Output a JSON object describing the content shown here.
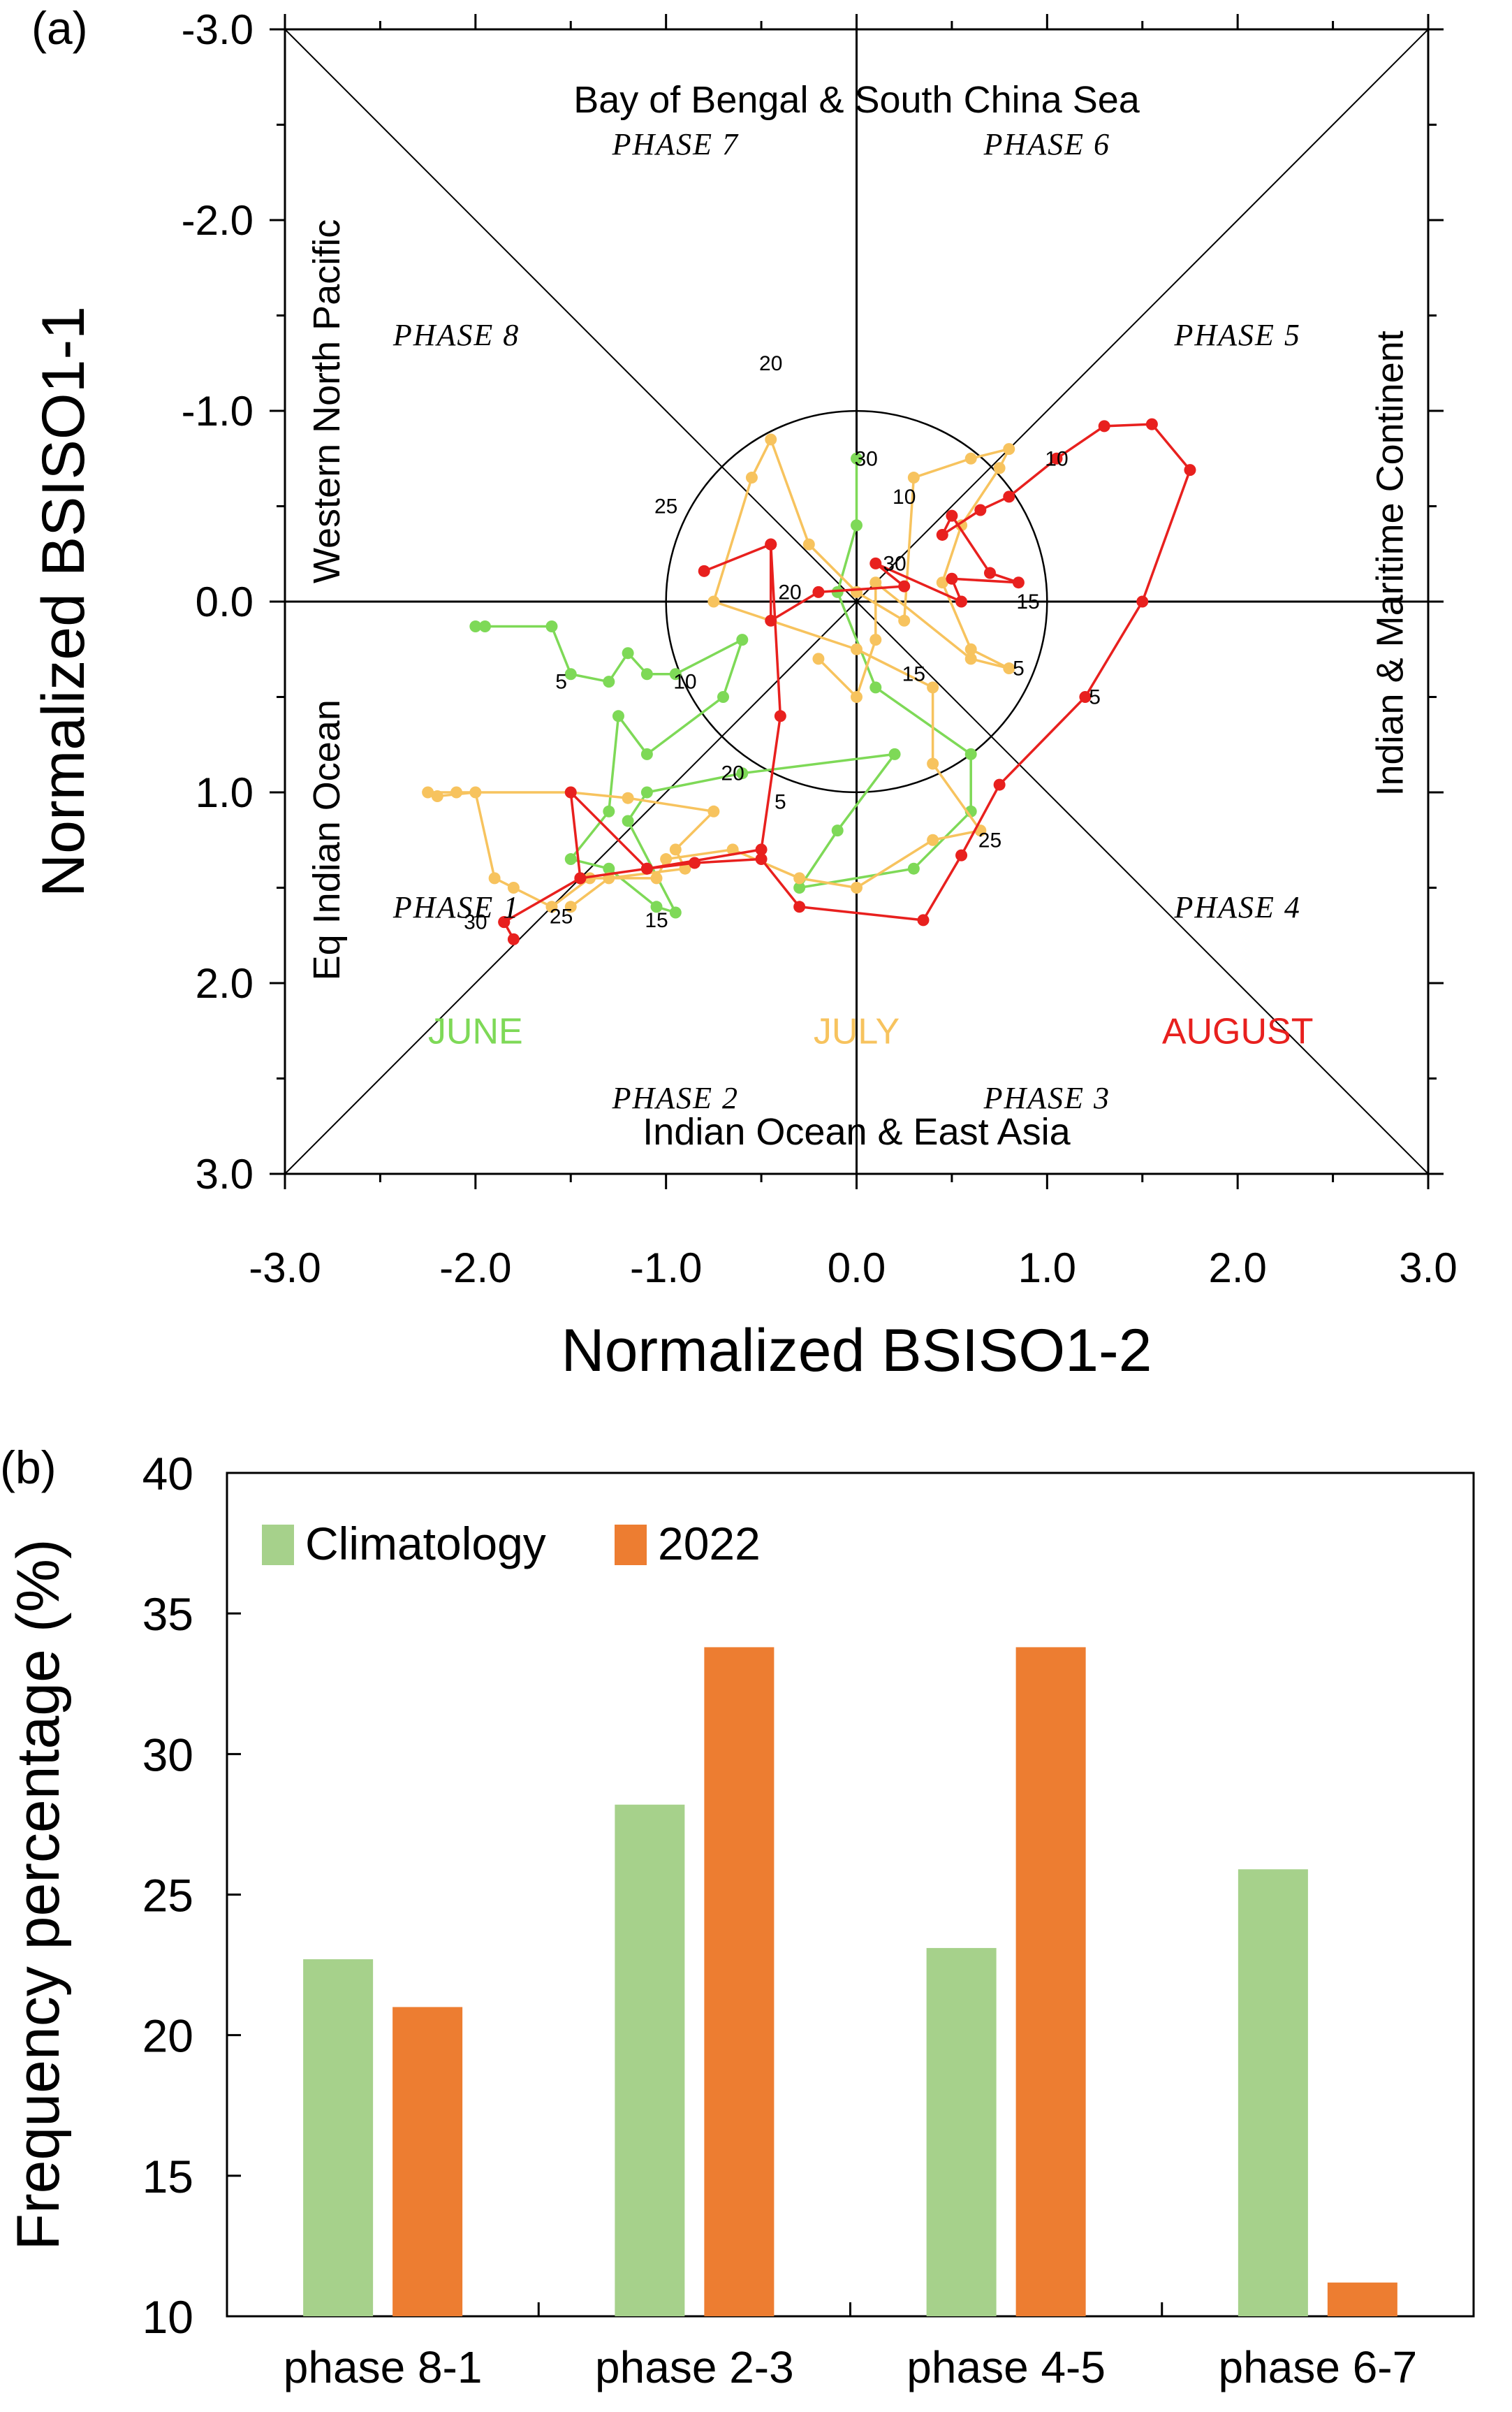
{
  "panels": {
    "a": "(a)",
    "b": "(b)"
  },
  "chart_data": [
    {
      "type": "scatter",
      "title": "",
      "xlabel": "Normalized BSISO1-2",
      "ylabel": "Normalized BSISO1-1",
      "xlim": [
        -3,
        3
      ],
      "ylim": [
        3,
        -3
      ],
      "xticks": [
        "-3.0",
        "-2.0",
        "-1.0",
        "0.0",
        "1.0",
        "2.0",
        "3.0"
      ],
      "yticks": [
        "-3.0",
        "-2.0",
        "-1.0",
        "0.0",
        "1.0",
        "2.0",
        "3.0"
      ],
      "y_axis_inverted": true,
      "phase_labels": [
        {
          "text": "PHASE 1",
          "x": -2.1,
          "y": 1.6
        },
        {
          "text": "PHASE 2",
          "x": -0.95,
          "y": 2.6
        },
        {
          "text": "PHASE 3",
          "x": 1.0,
          "y": 2.6
        },
        {
          "text": "PHASE 4",
          "x": 2.0,
          "y": 1.6
        },
        {
          "text": "PHASE 5",
          "x": 2.0,
          "y": -1.4
        },
        {
          "text": "PHASE 6",
          "x": 1.0,
          "y": -2.4
        },
        {
          "text": "PHASE 7",
          "x": -0.95,
          "y": -2.4
        },
        {
          "text": "PHASE 8",
          "x": -2.1,
          "y": -1.4
        }
      ],
      "regions": {
        "top": "Bay of Bengal & South China Sea",
        "bottom": "Indian Ocean & East Asia",
        "left_outer": "Eq Indian Ocean",
        "left_inner": "Western North Pacific",
        "right": "Indian & Maritime Continent"
      },
      "unit_circle_radius": 1.0,
      "series": [
        {
          "name": "JUNE",
          "color": "#7ed957",
          "points": [
            [
              -2.0,
              0.13
            ],
            [
              -1.95,
              0.13
            ],
            [
              -1.6,
              0.13
            ],
            [
              -1.5,
              0.38
            ],
            [
              -1.3,
              0.42
            ],
            [
              -1.2,
              0.27
            ],
            [
              -1.1,
              0.38
            ],
            [
              -0.95,
              0.38
            ],
            [
              -0.6,
              0.2
            ],
            [
              -0.7,
              0.5
            ],
            [
              -1.1,
              0.8
            ],
            [
              -1.25,
              0.6
            ],
            [
              -1.3,
              1.1
            ],
            [
              -1.5,
              1.35
            ],
            [
              -1.3,
              1.4
            ],
            [
              -1.05,
              1.6
            ],
            [
              -0.95,
              1.63
            ],
            [
              -1.2,
              1.15
            ],
            [
              -1.1,
              1.0
            ],
            [
              -0.6,
              0.9
            ],
            [
              0.2,
              0.8
            ],
            [
              -0.1,
              1.2
            ],
            [
              -0.3,
              1.5
            ],
            [
              0.3,
              1.4
            ],
            [
              0.6,
              1.1
            ],
            [
              0.6,
              0.8
            ],
            [
              0.1,
              0.45
            ],
            [
              -0.1,
              -0.05
            ],
            [
              0.0,
              -0.4
            ],
            [
              0.0,
              -0.75
            ]
          ],
          "day_labels": [
            {
              "text": "5",
              "x": -1.55,
              "y": 0.42
            },
            {
              "text": "10",
              "x": -0.9,
              "y": 0.42
            },
            {
              "text": "15",
              "x": -1.05,
              "y": 1.67
            },
            {
              "text": "20",
              "x": -0.65,
              "y": 0.9
            },
            {
              "text": "25",
              "x": 0.7,
              "y": 1.25
            },
            {
              "text": "30",
              "x": 0.05,
              "y": -0.75
            }
          ]
        },
        {
          "name": "JULY",
          "color": "#f7c35e",
          "points": [
            [
              -0.2,
              0.3
            ],
            [
              0.0,
              0.5
            ],
            [
              0.1,
              0.2
            ],
            [
              0.1,
              -0.1
            ],
            [
              0.6,
              0.3
            ],
            [
              0.8,
              0.35
            ],
            [
              0.6,
              0.25
            ],
            [
              0.45,
              -0.1
            ],
            [
              0.55,
              -0.4
            ],
            [
              0.75,
              -0.7
            ],
            [
              0.8,
              -0.8
            ],
            [
              0.6,
              -0.75
            ],
            [
              0.3,
              -0.65
            ],
            [
              0.25,
              0.1
            ],
            [
              0.0,
              -0.05
            ],
            [
              -0.25,
              -0.3
            ],
            [
              -0.45,
              -0.85
            ],
            [
              -0.55,
              -0.65
            ],
            [
              -0.75,
              0.0
            ],
            [
              0.0,
              0.25
            ],
            [
              0.4,
              0.45
            ],
            [
              0.4,
              0.85
            ],
            [
              0.65,
              1.2
            ],
            [
              0.4,
              1.25
            ],
            [
              0.0,
              1.5
            ],
            [
              -0.3,
              1.45
            ],
            [
              -0.65,
              1.3
            ],
            [
              -1.0,
              1.35
            ],
            [
              -1.05,
              1.45
            ],
            [
              -1.4,
              1.45
            ],
            [
              -1.6,
              1.6
            ],
            [
              -1.8,
              1.5
            ],
            [
              -1.9,
              1.45
            ],
            [
              -2.0,
              1.0
            ],
            [
              -2.2,
              1.02
            ],
            [
              -2.25,
              1.0
            ],
            [
              -2.1,
              1.0
            ],
            [
              -1.5,
              1.0
            ],
            [
              -1.2,
              1.03
            ],
            [
              -0.75,
              1.1
            ],
            [
              -0.95,
              1.3
            ],
            [
              -0.9,
              1.4
            ],
            [
              -1.3,
              1.45
            ],
            [
              -1.5,
              1.6
            ]
          ],
          "day_labels": [
            {
              "text": "5",
              "x": 0.85,
              "y": 0.35
            },
            {
              "text": "10",
              "x": 0.25,
              "y": -0.55
            },
            {
              "text": "15",
              "x": 0.3,
              "y": 0.38
            },
            {
              "text": "20",
              "x": -0.45,
              "y": -1.25
            },
            {
              "text": "25",
              "x": -1.0,
              "y": -0.5
            },
            {
              "text": "5",
              "x": -0.4,
              "y": 1.05
            },
            {
              "text": "25",
              "x": -1.55,
              "y": 1.65
            }
          ]
        },
        {
          "name": "AUGUST",
          "color": "#e8201e",
          "points": [
            [
              -1.8,
              1.77
            ],
            [
              -1.85,
              1.68
            ],
            [
              -1.45,
              1.45
            ],
            [
              -1.1,
              1.4
            ],
            [
              -0.85,
              1.37
            ],
            [
              -0.5,
              1.35
            ],
            [
              -0.3,
              1.6
            ],
            [
              0.35,
              1.67
            ],
            [
              0.55,
              1.33
            ],
            [
              0.75,
              0.96
            ],
            [
              1.2,
              0.5
            ],
            [
              1.5,
              0.0
            ],
            [
              1.75,
              -0.69
            ],
            [
              1.55,
              -0.93
            ],
            [
              1.3,
              -0.92
            ],
            [
              1.05,
              -0.75
            ],
            [
              0.8,
              -0.55
            ],
            [
              0.65,
              -0.48
            ],
            [
              0.45,
              -0.35
            ],
            [
              0.5,
              -0.45
            ],
            [
              0.7,
              -0.15
            ],
            [
              0.85,
              -0.1
            ],
            [
              0.5,
              -0.12
            ],
            [
              0.55,
              0.0
            ],
            [
              0.1,
              -0.2
            ],
            [
              0.25,
              -0.08
            ],
            [
              -0.2,
              -0.05
            ],
            [
              -0.45,
              0.1
            ],
            [
              -0.45,
              -0.3
            ],
            [
              -0.8,
              -0.16
            ],
            [
              -0.45,
              -0.3
            ],
            [
              -0.4,
              0.6
            ],
            [
              -0.5,
              1.3
            ],
            [
              -1.1,
              1.4
            ],
            [
              -1.5,
              1.0
            ],
            [
              -1.45,
              1.45
            ],
            [
              -1.85,
              1.68
            ]
          ],
          "day_labels": [
            {
              "text": "5",
              "x": 1.25,
              "y": 0.5
            },
            {
              "text": "10",
              "x": 1.05,
              "y": -0.75
            },
            {
              "text": "15",
              "x": 0.9,
              "y": 0.0
            },
            {
              "text": "20",
              "x": -0.35,
              "y": -0.05
            },
            {
              "text": "30",
              "x": 0.2,
              "y": -0.2
            },
            {
              "text": "30",
              "x": -2.0,
              "y": 1.68
            }
          ]
        }
      ],
      "month_labels": [
        {
          "text": "JUNE",
          "color": "#7ed957",
          "x": -2.0,
          "y": 2.25
        },
        {
          "text": "JULY",
          "color": "#f7c35e",
          "x": 0.0,
          "y": 2.25
        },
        {
          "text": "AUGUST",
          "color": "#e8201e",
          "x": 2.0,
          "y": 2.25
        }
      ]
    },
    {
      "type": "bar",
      "title": "",
      "xlabel": "",
      "ylabel": "Frequency percentage (%)",
      "ylim": [
        10,
        40
      ],
      "yticks": [
        "10",
        "15",
        "20",
        "25",
        "30",
        "35",
        "40"
      ],
      "categories": [
        "phase 8-1",
        "phase 2-3",
        "phase 4-5",
        "phase 6-7"
      ],
      "legend_position": "top-left",
      "series": [
        {
          "name": "Climatology",
          "color": "#a6d18b",
          "values": [
            22.7,
            28.2,
            23.1,
            25.9
          ]
        },
        {
          "name": "2022",
          "color": "#ed7d31",
          "values": [
            21.0,
            33.8,
            33.8,
            11.2
          ]
        }
      ]
    }
  ]
}
